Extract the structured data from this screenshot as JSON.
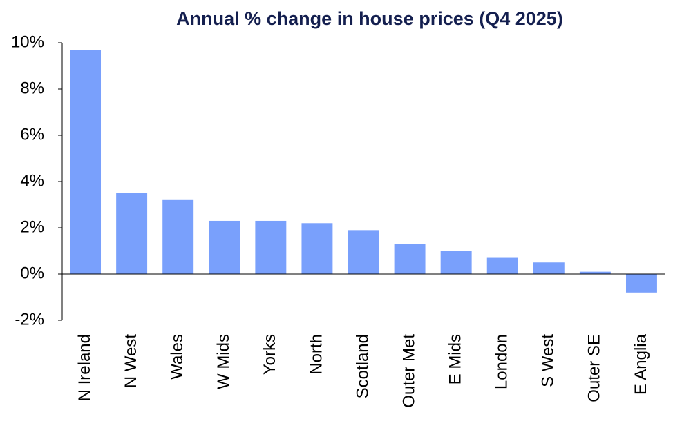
{
  "chart_data": {
    "type": "bar",
    "title": "Annual % change in house prices (Q4 2025)",
    "categories": [
      "N Ireland",
      "N West",
      "Wales",
      "W Mids",
      "Yorks",
      "North",
      "Scotland",
      "Outer Met",
      "E Mids",
      "London",
      "S West",
      "Outer SE",
      "E Anglia"
    ],
    "values": [
      9.7,
      3.5,
      3.2,
      2.3,
      2.3,
      2.2,
      1.9,
      1.3,
      1.0,
      0.7,
      0.5,
      0.1,
      -0.8
    ],
    "color": "#79a0fc",
    "ylim": [
      -2,
      10
    ],
    "yticks": [
      {
        "value": -2,
        "label": "-2%"
      },
      {
        "value": 0,
        "label": "0%"
      },
      {
        "value": 2,
        "label": "2%"
      },
      {
        "value": 4,
        "label": "4%"
      },
      {
        "value": 6,
        "label": "6%"
      },
      {
        "value": 8,
        "label": "8%"
      },
      {
        "value": 10,
        "label": "10%"
      }
    ],
    "grid": false
  }
}
